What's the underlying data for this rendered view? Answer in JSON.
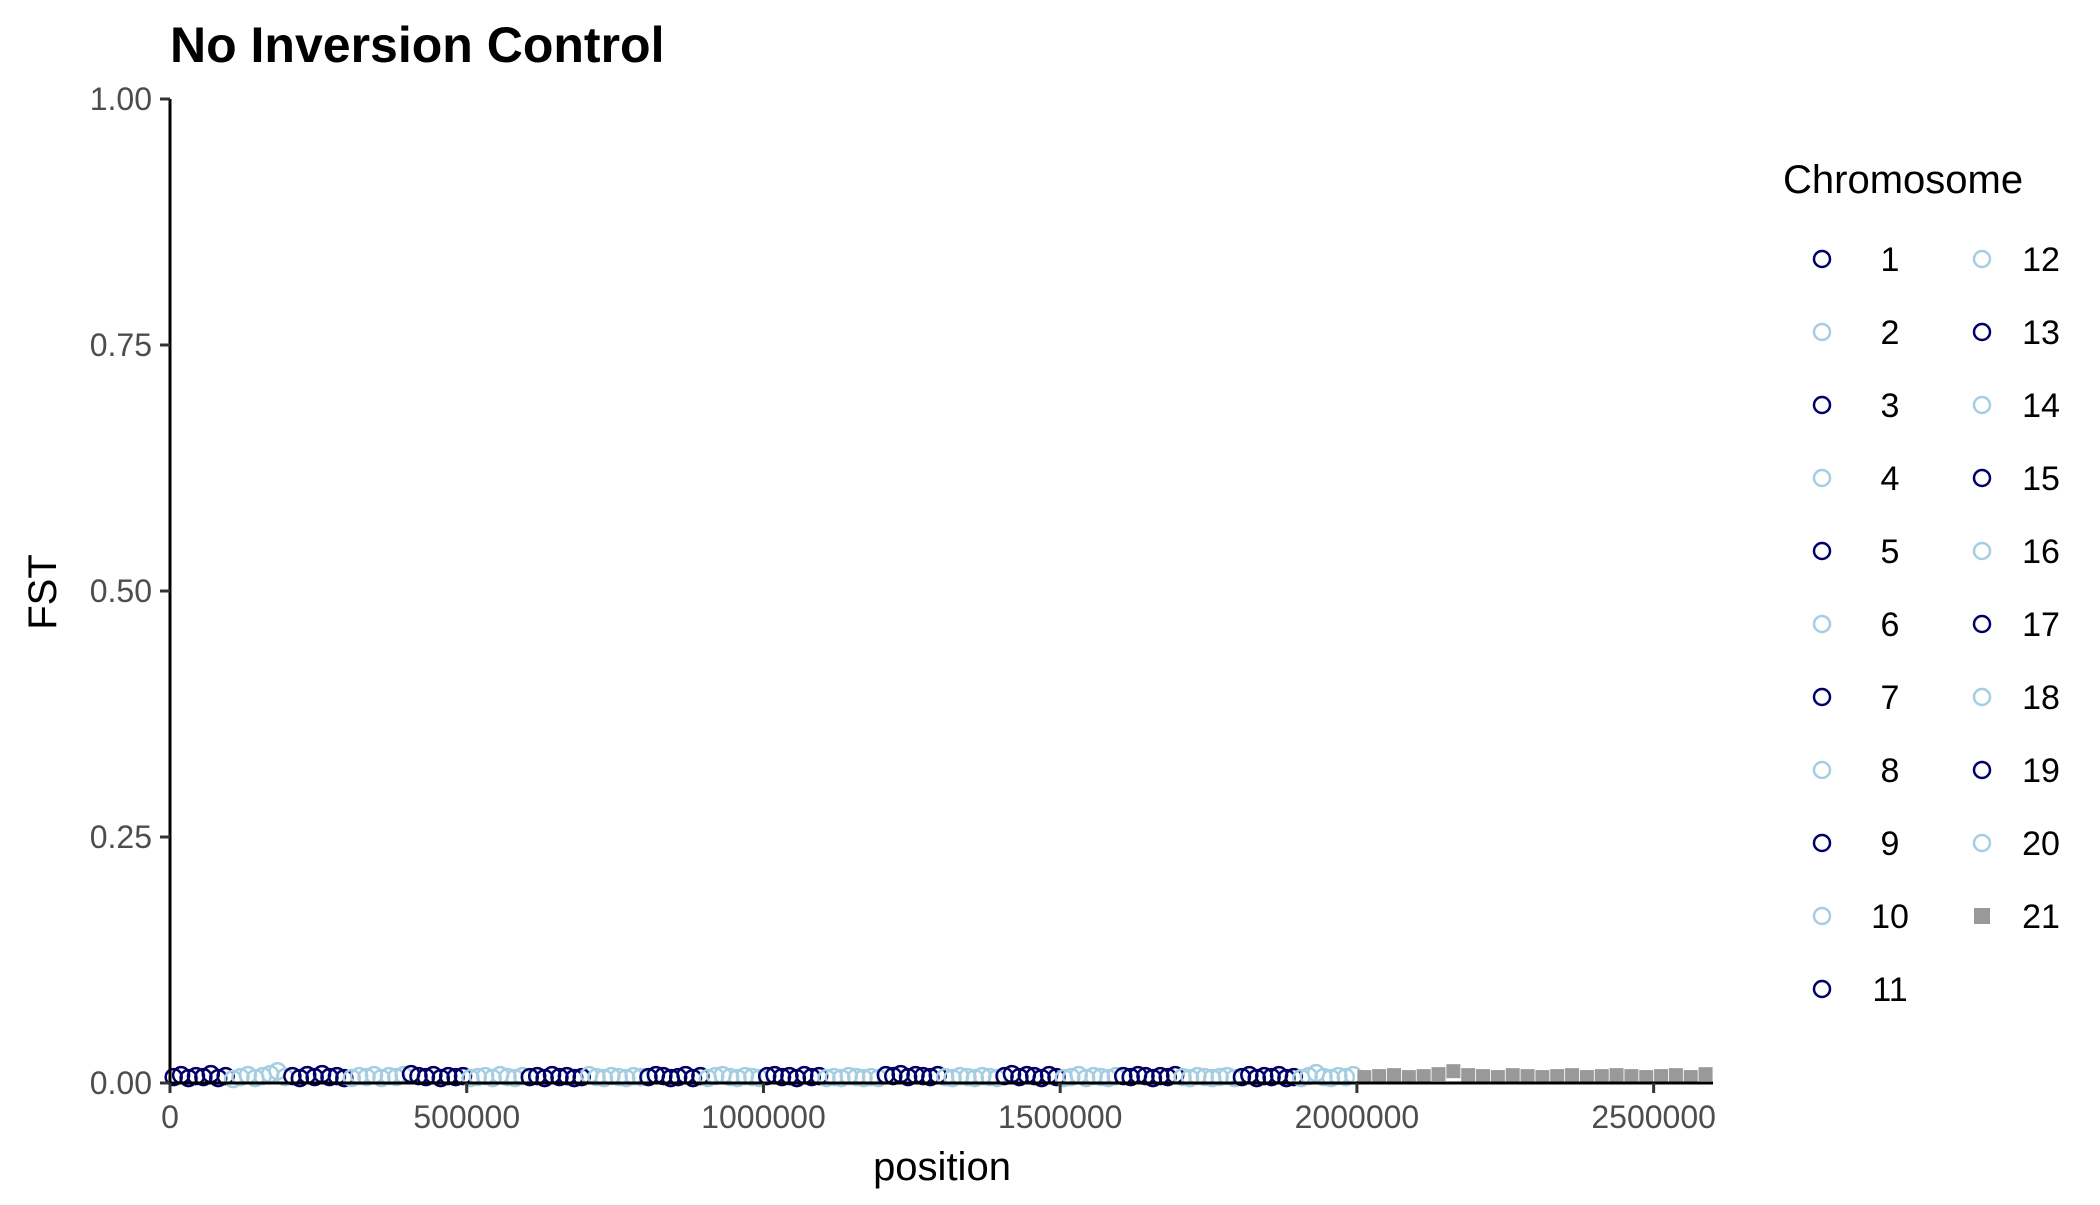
{
  "chart_data": {
    "type": "scatter",
    "title": "No Inversion Control",
    "xlabel": "position",
    "ylabel": "FST",
    "xlim": [
      0,
      2600000
    ],
    "ylim": [
      0,
      1
    ],
    "x_ticks": [
      "0",
      "500000",
      "1000000",
      "1500000",
      "2000000",
      "2500000"
    ],
    "y_ticks": [
      "0.00",
      "0.25",
      "0.50",
      "0.75",
      "1.00"
    ],
    "grid": false,
    "legend_position": "right",
    "legend_title": "Chromosome",
    "colors": {
      "dark": "#000066",
      "light": "#a6cee3",
      "grey": "#999999"
    },
    "series": [
      {
        "name": "1",
        "shape": "circle",
        "color": "#000066",
        "x_range": [
          0,
          100000
        ],
        "fst": [
          0.006,
          0.008,
          0.005,
          0.007,
          0.006,
          0.009,
          0.005,
          0.007
        ]
      },
      {
        "name": "2",
        "shape": "circle",
        "color": "#a6cee3",
        "x_range": [
          100000,
          200000
        ],
        "fst": [
          0.004,
          0.006,
          0.008,
          0.005,
          0.007,
          0.009,
          0.012,
          0.006
        ]
      },
      {
        "name": "3",
        "shape": "circle",
        "color": "#000066",
        "x_range": [
          200000,
          300000
        ],
        "fst": [
          0.007,
          0.005,
          0.008,
          0.006,
          0.009,
          0.006,
          0.007,
          0.005
        ]
      },
      {
        "name": "4",
        "shape": "circle",
        "color": "#a6cee3",
        "x_range": [
          300000,
          400000
        ],
        "fst": [
          0.005,
          0.007,
          0.006,
          0.008,
          0.005,
          0.007,
          0.006,
          0.008
        ]
      },
      {
        "name": "5",
        "shape": "circle",
        "color": "#000066",
        "x_range": [
          400000,
          500000
        ],
        "fst": [
          0.009,
          0.007,
          0.006,
          0.008,
          0.005,
          0.007,
          0.006,
          0.007
        ]
      },
      {
        "name": "6",
        "shape": "circle",
        "color": "#a6cee3",
        "x_range": [
          500000,
          600000
        ],
        "fst": [
          0.005,
          0.006,
          0.007,
          0.005,
          0.008,
          0.006,
          0.005,
          0.007
        ]
      },
      {
        "name": "7",
        "shape": "circle",
        "color": "#000066",
        "x_range": [
          600000,
          700000
        ],
        "fst": [
          0.006,
          0.007,
          0.005,
          0.008,
          0.006,
          0.007,
          0.005,
          0.006
        ]
      },
      {
        "name": "8",
        "shape": "circle",
        "color": "#a6cee3",
        "x_range": [
          700000,
          800000
        ],
        "fst": [
          0.008,
          0.006,
          0.005,
          0.007,
          0.006,
          0.005,
          0.007,
          0.006
        ]
      },
      {
        "name": "9",
        "shape": "circle",
        "color": "#000066",
        "x_range": [
          800000,
          900000
        ],
        "fst": [
          0.006,
          0.008,
          0.007,
          0.005,
          0.006,
          0.008,
          0.005,
          0.007
        ]
      },
      {
        "name": "10",
        "shape": "circle",
        "color": "#a6cee3",
        "x_range": [
          900000,
          1000000
        ],
        "fst": [
          0.005,
          0.007,
          0.008,
          0.006,
          0.005,
          0.007,
          0.006,
          0.005
        ]
      },
      {
        "name": "11",
        "shape": "circle",
        "color": "#000066",
        "x_range": [
          1000000,
          1100000
        ],
        "fst": [
          0.007,
          0.008,
          0.006,
          0.007,
          0.005,
          0.008,
          0.006,
          0.007
        ]
      },
      {
        "name": "12",
        "shape": "circle",
        "color": "#a6cee3",
        "x_range": [
          1100000,
          1200000
        ],
        "fst": [
          0.005,
          0.006,
          0.005,
          0.007,
          0.006,
          0.005,
          0.006,
          0.005
        ]
      },
      {
        "name": "13",
        "shape": "circle",
        "color": "#000066",
        "x_range": [
          1200000,
          1300000
        ],
        "fst": [
          0.008,
          0.007,
          0.009,
          0.006,
          0.008,
          0.007,
          0.006,
          0.008
        ]
      },
      {
        "name": "14",
        "shape": "circle",
        "color": "#a6cee3",
        "x_range": [
          1300000,
          1400000
        ],
        "fst": [
          0.006,
          0.005,
          0.007,
          0.006,
          0.005,
          0.007,
          0.006,
          0.005
        ]
      },
      {
        "name": "15",
        "shape": "circle",
        "color": "#000066",
        "x_range": [
          1400000,
          1500000
        ],
        "fst": [
          0.007,
          0.009,
          0.006,
          0.008,
          0.007,
          0.005,
          0.008,
          0.006
        ]
      },
      {
        "name": "16",
        "shape": "circle",
        "color": "#a6cee3",
        "x_range": [
          1500000,
          1600000
        ],
        "fst": [
          0.005,
          0.006,
          0.008,
          0.005,
          0.007,
          0.006,
          0.005,
          0.007
        ]
      },
      {
        "name": "17",
        "shape": "circle",
        "color": "#000066",
        "x_range": [
          1600000,
          1700000
        ],
        "fst": [
          0.007,
          0.006,
          0.008,
          0.007,
          0.005,
          0.007,
          0.006,
          0.008
        ]
      },
      {
        "name": "18",
        "shape": "circle",
        "color": "#a6cee3",
        "x_range": [
          1700000,
          1800000
        ],
        "fst": [
          0.006,
          0.005,
          0.007,
          0.006,
          0.005,
          0.006,
          0.007,
          0.005
        ]
      },
      {
        "name": "19",
        "shape": "circle",
        "color": "#000066",
        "x_range": [
          1800000,
          1900000
        ],
        "fst": [
          0.006,
          0.008,
          0.005,
          0.007,
          0.006,
          0.008,
          0.005,
          0.006
        ]
      },
      {
        "name": "20",
        "shape": "circle",
        "color": "#a6cee3",
        "x_range": [
          1900000,
          2000000
        ],
        "fst": [
          0.005,
          0.007,
          0.01,
          0.006,
          0.005,
          0.007,
          0.006,
          0.008
        ]
      },
      {
        "name": "21",
        "shape": "square",
        "color": "#999999",
        "x_range": [
          2000000,
          2600000
        ],
        "fst": [
          0.006,
          0.007,
          0.008,
          0.006,
          0.007,
          0.009,
          0.012,
          0.008,
          0.007,
          0.006,
          0.008,
          0.007,
          0.006,
          0.007,
          0.008,
          0.006,
          0.007,
          0.008,
          0.007,
          0.006,
          0.007,
          0.008,
          0.006,
          0.009
        ]
      }
    ]
  }
}
